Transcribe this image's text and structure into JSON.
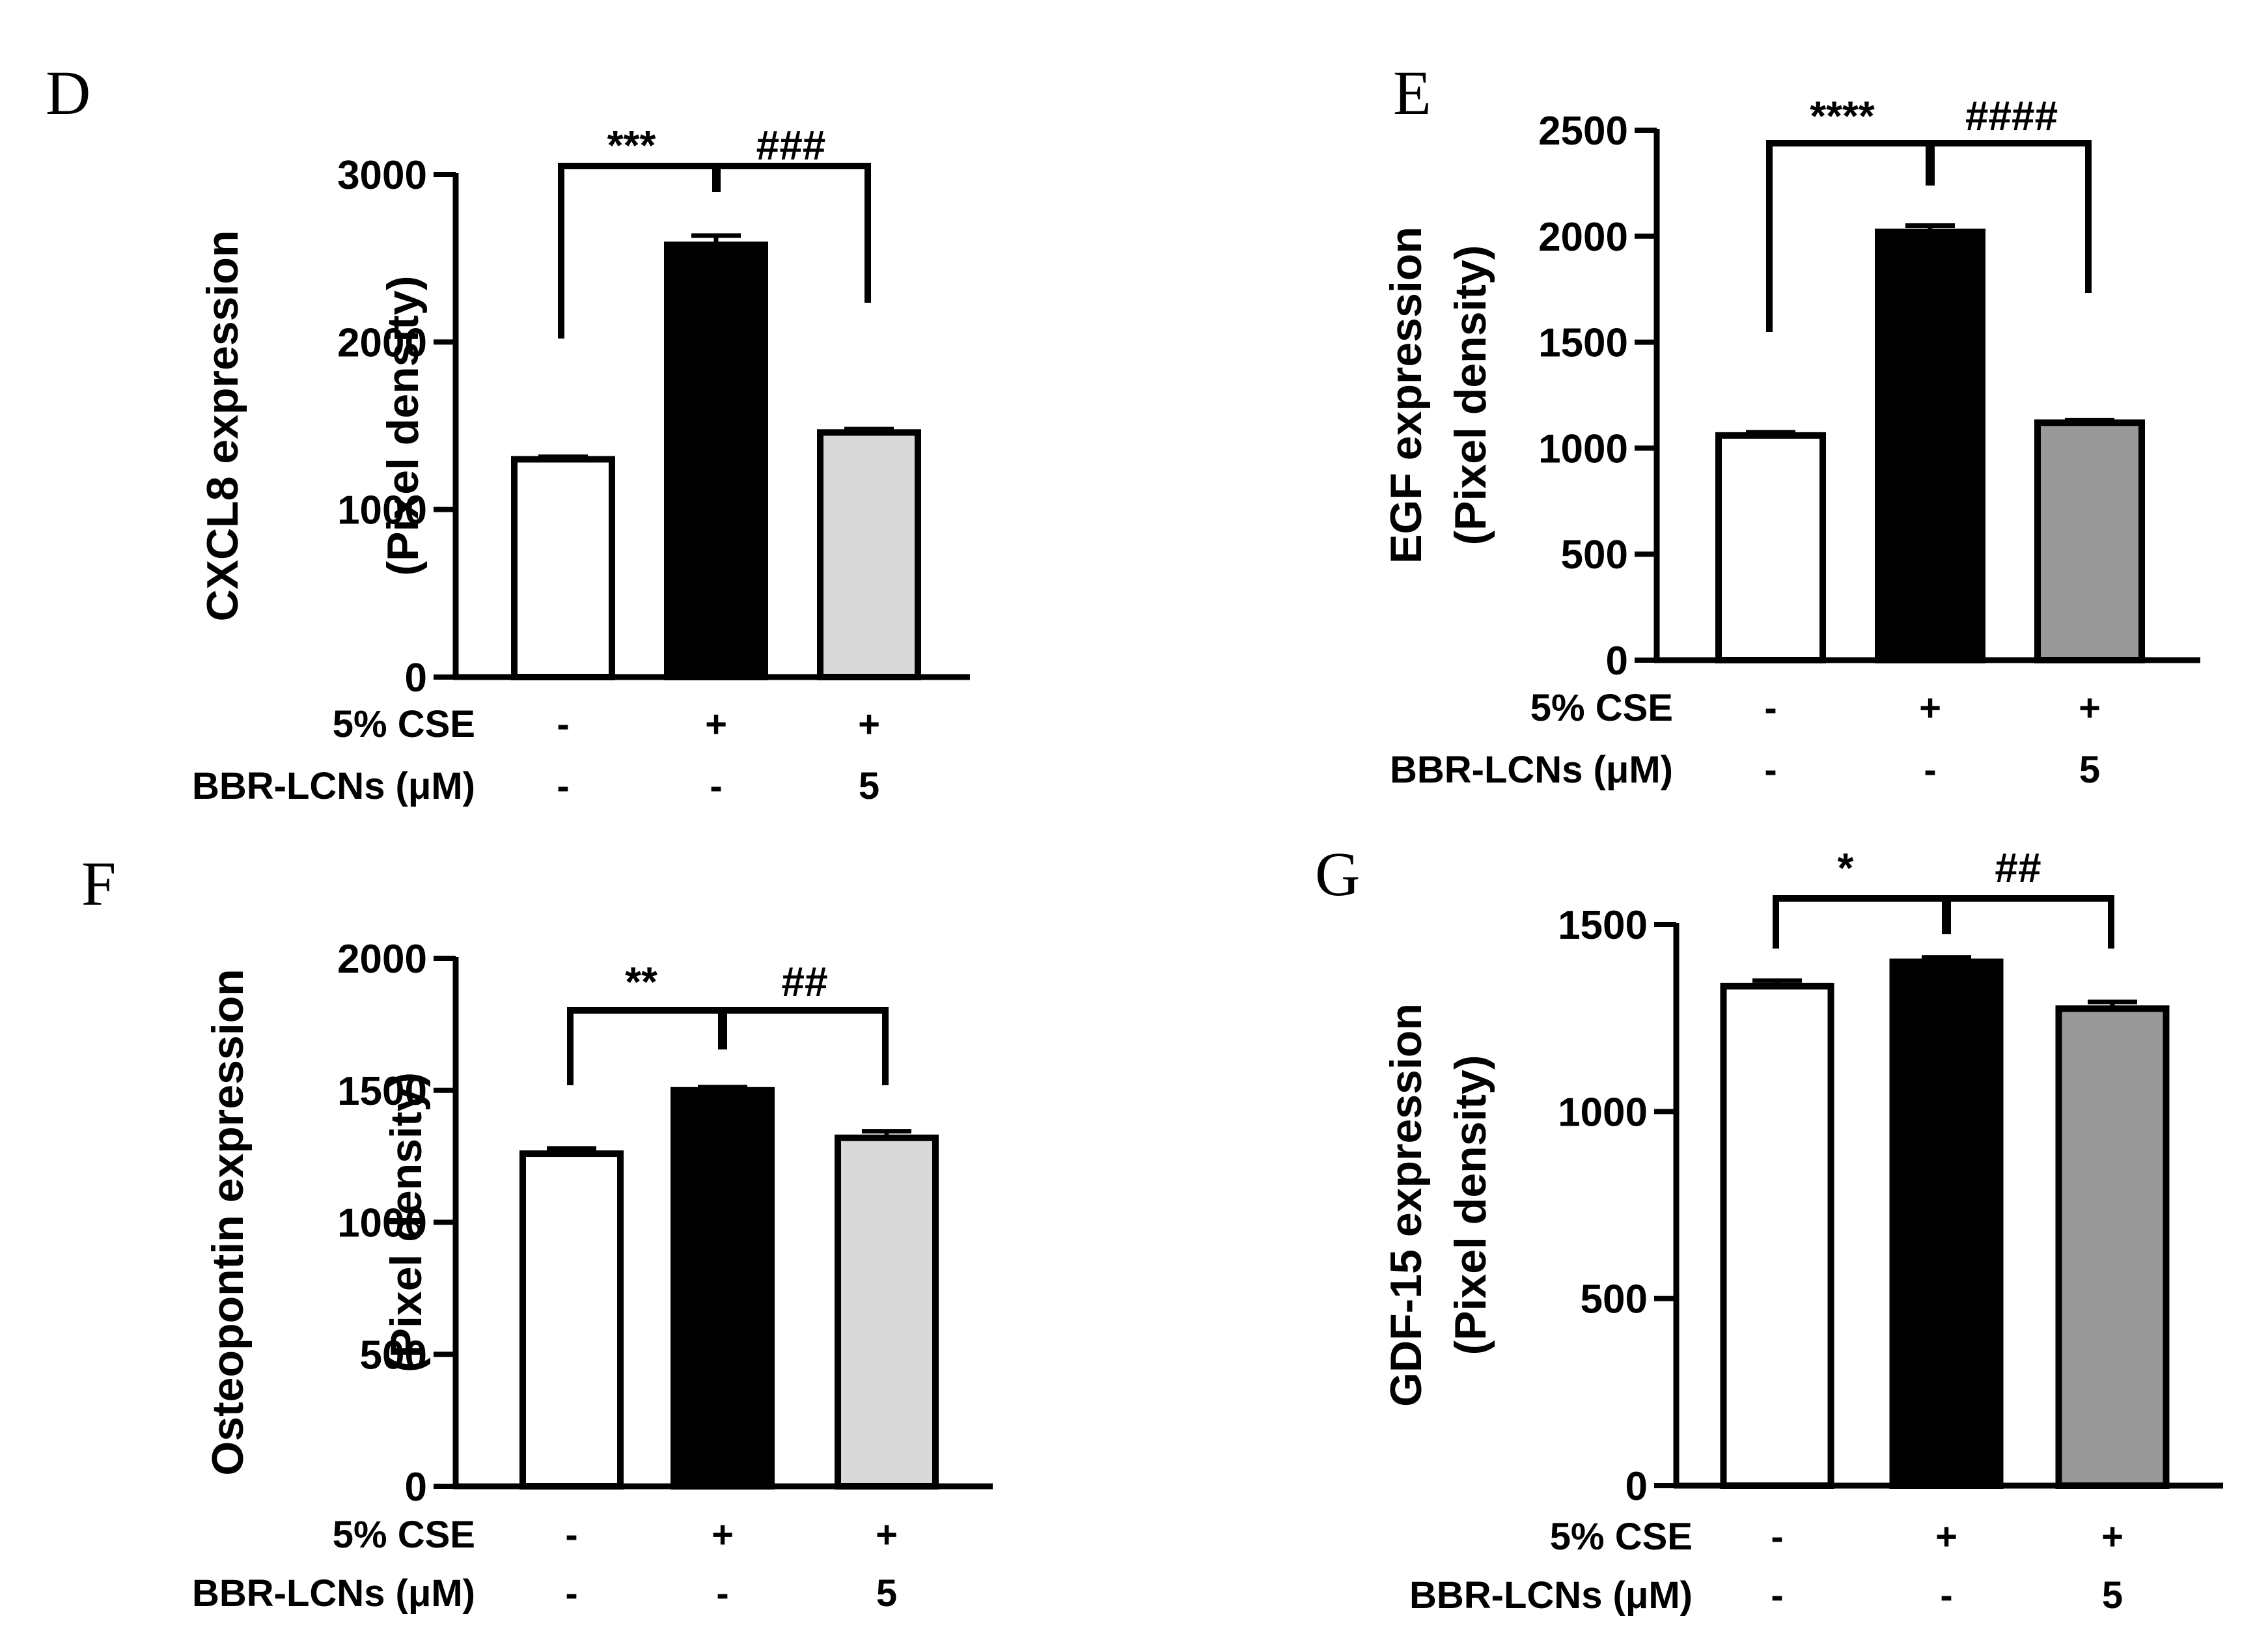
{
  "chart_data": [
    {
      "panel": "D",
      "type": "bar",
      "ylabel_line1": "CXCL8 expression",
      "ylabel_line2": "(Pixel density)",
      "ylim": [
        0,
        3000
      ],
      "yticks": [
        0,
        1000,
        2000,
        3000
      ],
      "ytick_labels": [
        "0",
        "1000",
        "2000",
        "3000"
      ],
      "values": [
        1300,
        2580,
        1460
      ],
      "errors": [
        15,
        55,
        20
      ],
      "fills": [
        "#ffffff",
        "#000000",
        "#d9d9d9"
      ],
      "row_labels": [
        "5% CSE",
        "BBR-LCNs (μM)"
      ],
      "conditions": [
        [
          "-",
          "+",
          "+"
        ],
        [
          "-",
          "-",
          "5"
        ]
      ],
      "sig1": "***",
      "sig2": "###"
    },
    {
      "panel": "E",
      "type": "bar",
      "ylabel_line1": "EGF expression",
      "ylabel_line2": "(Pixel density)",
      "ylim": [
        0,
        2500
      ],
      "yticks": [
        0,
        500,
        1000,
        1500,
        2000,
        2500
      ],
      "ytick_labels": [
        "0",
        "500",
        "1000",
        "1500",
        "2000",
        "2500"
      ],
      "values": [
        1060,
        2020,
        1120
      ],
      "errors": [
        15,
        30,
        12
      ],
      "fills": [
        "#ffffff",
        "#000000",
        "#999999"
      ],
      "row_labels": [
        "5% CSE",
        "BBR-LCNs (μM)"
      ],
      "conditions": [
        [
          "-",
          "+",
          "+"
        ],
        [
          "-",
          "-",
          "5"
        ]
      ],
      "sig1": "****",
      "sig2": "####"
    },
    {
      "panel": "F",
      "type": "bar",
      "ylabel_line1": "Osteopontin expression",
      "ylabel_line2": "(Pixel density)",
      "ylim": [
        0,
        2000
      ],
      "yticks": [
        0,
        500,
        1000,
        1500,
        2000
      ],
      "ytick_labels": [
        "0",
        "500",
        "1000",
        "1500",
        "2000"
      ],
      "values": [
        1260,
        1500,
        1320
      ],
      "errors": [
        20,
        12,
        25
      ],
      "fills": [
        "#ffffff",
        "#000000",
        "#d9d9d9"
      ],
      "row_labels": [
        "5% CSE",
        "BBR-LCNs (μM)"
      ],
      "conditions": [
        [
          "-",
          "+",
          "+"
        ],
        [
          "-",
          "-",
          "5"
        ]
      ],
      "sig1": "**",
      "sig2": "##"
    },
    {
      "panel": "G",
      "type": "bar",
      "ylabel_line1": "GDF-15 expression",
      "ylabel_line2": "(Pixel density)",
      "ylim": [
        0,
        1500
      ],
      "yticks": [
        0,
        500,
        1000,
        1500
      ],
      "ytick_labels": [
        "0",
        "500",
        "1000",
        "1500"
      ],
      "values": [
        1335,
        1400,
        1275
      ],
      "errors": [
        15,
        12,
        18
      ],
      "fills": [
        "#ffffff",
        "#000000",
        "#999999"
      ],
      "row_labels": [
        "5% CSE",
        "BBR-LCNs (μM)"
      ],
      "conditions": [
        [
          "-",
          "+",
          "+"
        ],
        [
          "-",
          "-",
          "5"
        ]
      ],
      "sig1": "*",
      "sig2": "##"
    }
  ]
}
